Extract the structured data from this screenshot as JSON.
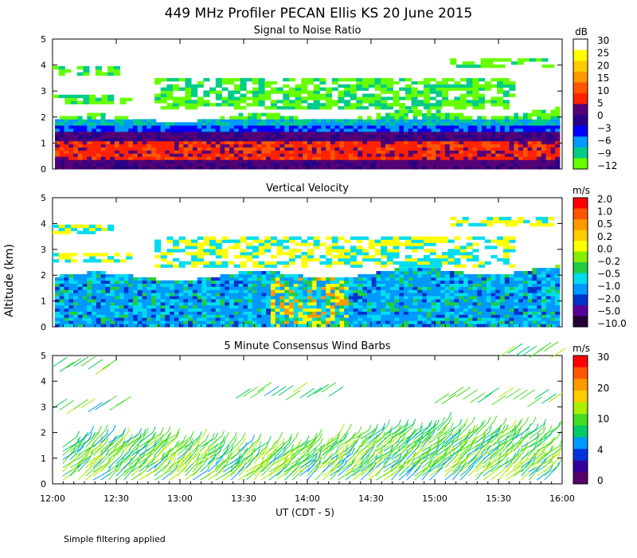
{
  "title": "449 MHz Profiler PECAN Ellis KS 20 June 2015",
  "ylabel": "Altitude (km)",
  "xlabel": "UT  (CDT - 5)",
  "footnote": "Simple filtering applied",
  "x_ticks": [
    "12:00",
    "12:30",
    "13:00",
    "13:30",
    "14:00",
    "14:30",
    "15:00",
    "15:30",
    "16:00"
  ],
  "y_ticks": [
    "0",
    "1",
    "2",
    "3",
    "4",
    "5"
  ],
  "chart_data": [
    {
      "type": "heatmap",
      "title": "Signal to Noise Ratio",
      "x_range": [
        "12:00",
        "16:00"
      ],
      "y_range": [
        0,
        5
      ],
      "colorbar_unit": "dB",
      "colorbar_labels": [
        "30",
        "25",
        "20",
        "15",
        "10",
        "5",
        "0",
        "−3",
        "−6",
        "−9",
        "−12"
      ],
      "colors": [
        "#ffffff",
        "#ffff00",
        "#ffcc00",
        "#ff9900",
        "#ff5500",
        "#ff2200",
        "#550077",
        "#2a0088",
        "#0000ff",
        "#0099ff",
        "#00cc88",
        "#66ff00"
      ]
    },
    {
      "type": "heatmap",
      "title": "Vertical Velocity",
      "x_range": [
        "12:00",
        "16:00"
      ],
      "y_range": [
        0,
        5
      ],
      "colorbar_unit": "m/s",
      "colorbar_labels": [
        "2.0",
        "1.0",
        "0.5",
        "0.2",
        "0.0",
        "−0.2",
        "−0.5",
        "−1.0",
        "−2.0",
        "−5.0",
        "−10.0"
      ],
      "colors": [
        "#ff0000",
        "#ff5500",
        "#ff9900",
        "#ffcc00",
        "#ffff00",
        "#88ee00",
        "#22cc44",
        "#00ddee",
        "#0099ff",
        "#0033cc",
        "#550099",
        "#220033"
      ]
    },
    {
      "type": "wind_barbs",
      "title": "5 Minute Consensus Wind Barbs",
      "x_range": [
        "12:00",
        "16:00"
      ],
      "y_range": [
        0,
        5
      ],
      "colorbar_unit": "m/s",
      "colorbar_labels": [
        "30",
        "20",
        "10",
        "4",
        "0"
      ],
      "colors": [
        "#ff0000",
        "#ff5500",
        "#ff9900",
        "#ffcc00",
        "#aaee00",
        "#44dd22",
        "#00cc66",
        "#0099ff",
        "#0033dd",
        "#330099",
        "#550066"
      ]
    }
  ]
}
